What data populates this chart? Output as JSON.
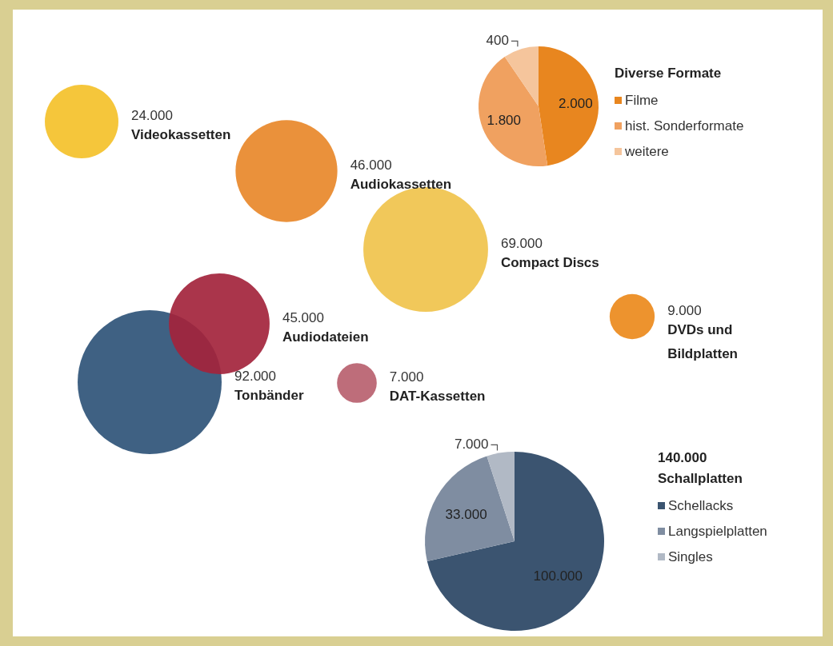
{
  "chart_data": [
    {
      "type": "other",
      "categories": [
        "Videokassetten",
        "Audiokassetten",
        "Compact Discs",
        "DVDs und Bildplatten",
        "Tonbänder",
        "Audiodateien",
        "DAT-Kassetten"
      ],
      "values": [
        24000,
        46000,
        69000,
        9000,
        92000,
        45000,
        7000
      ],
      "value_labels": [
        "24.000",
        "46.000",
        "69.000",
        "9.000",
        "92.000",
        "45.000",
        "7.000"
      ],
      "colors": [
        "#f4c12a",
        "#e8882a",
        "#f0c34c",
        "#ec8a1c",
        "#2f5478",
        "#a3243c",
        "#b9616f"
      ]
    },
    {
      "type": "pie",
      "title": "Diverse Formate",
      "categories": [
        "Filme",
        "hist. Sonderformate",
        "weitere"
      ],
      "values": [
        2000,
        1800,
        400
      ],
      "value_labels": [
        "2.000",
        "1.800",
        "400"
      ],
      "colors": [
        "#e8861f",
        "#f0a160",
        "#f5c59c"
      ],
      "legend": "right"
    },
    {
      "type": "pie",
      "title": "140.000 Schallplatten",
      "categories": [
        "Schellacks",
        "Langspielplatten",
        "Singles"
      ],
      "values": [
        100000,
        33000,
        7000
      ],
      "value_labels": [
        "100.000",
        "33.000",
        "7.000"
      ],
      "colors": [
        "#3b5470",
        "#7f8da1",
        "#b1b9c5"
      ],
      "legend": "right"
    }
  ]
}
